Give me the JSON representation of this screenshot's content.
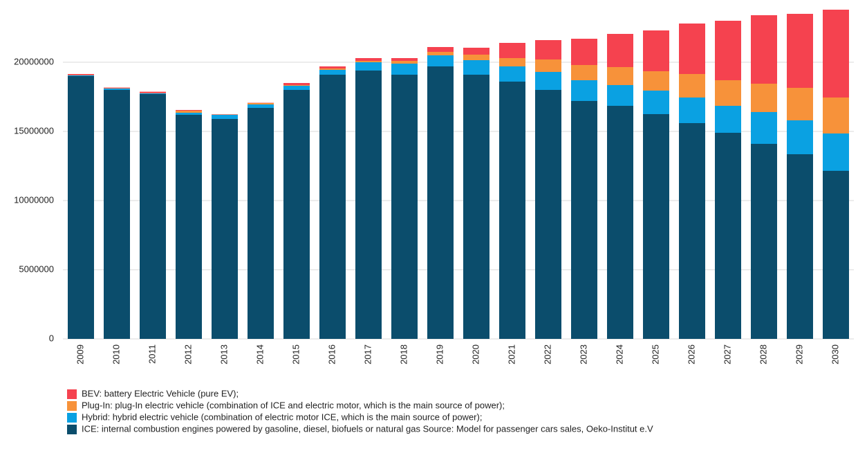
{
  "chart_data": {
    "type": "stacked-bar",
    "categories": [
      "2009",
      "2010",
      "2011",
      "2012",
      "2013",
      "2014",
      "2015",
      "2016",
      "2017",
      "2018",
      "2019",
      "2020",
      "2021",
      "2022",
      "2023",
      "2024",
      "2025",
      "2026",
      "2027",
      "2028",
      "2029",
      "2030"
    ],
    "series": [
      {
        "name": "ICE: internal combustion engines powered by gasoline, diesel, biofuels or natural gas Source: Model for passenger cars sales, Oeko-Institut e.V",
        "color": "#0b4d6c",
        "values": [
          19000000,
          18000000,
          17700000,
          16200000,
          15900000,
          16700000,
          18000000,
          19100000,
          19400000,
          19100000,
          19700000,
          19100000,
          18600000,
          18000000,
          17200000,
          16850000,
          16250000,
          15600000,
          14900000,
          14100000,
          13350000,
          12150000
        ]
      },
      {
        "name": "Hybrid: hybrid electric vehicle (combination of electric motor ICE, which is the main source of power);",
        "color": "#0aa1e2",
        "values": [
          50000,
          100000,
          50000,
          150000,
          300000,
          250000,
          300000,
          350000,
          600000,
          800000,
          800000,
          1050000,
          1100000,
          1300000,
          1500000,
          1500000,
          1700000,
          1850000,
          1950000,
          2300000,
          2450000,
          2700000
        ]
      },
      {
        "name": "Plug-In: plug-In electric vehicle (combination of ICE and electric motor, which is the main source of power);",
        "color": "#f7923a",
        "values": [
          20000,
          20000,
          20000,
          150000,
          20000,
          100000,
          50000,
          100000,
          100000,
          200000,
          250000,
          400000,
          600000,
          900000,
          1100000,
          1300000,
          1400000,
          1700000,
          1850000,
          2050000,
          2350000,
          2600000
        ]
      },
      {
        "name": "BEV: battery Electric Vehicle (pure EV);",
        "color": "#f5424f",
        "values": [
          80000,
          50000,
          100000,
          50000,
          20000,
          20000,
          150000,
          150000,
          200000,
          200000,
          350000,
          500000,
          1100000,
          1400000,
          1900000,
          2400000,
          2950000,
          3650000,
          4300000,
          4950000,
          5350000,
          6350000
        ]
      }
    ],
    "ylim": [
      0,
      24000000
    ],
    "yticks": [
      0,
      5000000,
      10000000,
      15000000,
      20000000
    ],
    "grid": true
  }
}
